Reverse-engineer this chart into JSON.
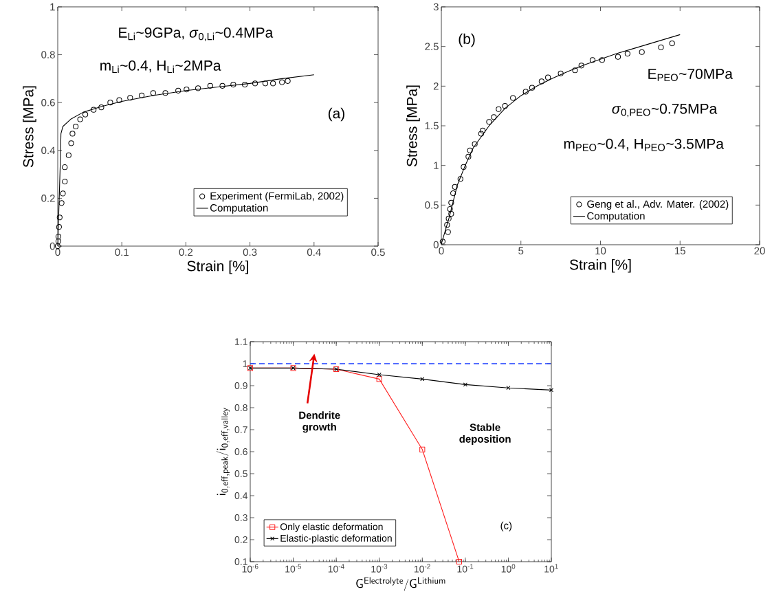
{
  "chart_data": [
    {
      "type": "scatter",
      "xlabel": "Strain [%]",
      "ylabel": "Stress [MPa]",
      "xlim": [
        0,
        0.5
      ],
      "ylim": [
        0,
        1
      ],
      "xticks": [
        0,
        0.1,
        0.2,
        0.3,
        0.4,
        0.5
      ],
      "yticks": [
        0,
        0.2,
        0.4,
        0.6,
        0.8,
        1
      ],
      "legend": "bottom right",
      "annotations": [
        "E$_{Li}$~9GPa, *σ*$_{0,Li}$~0.4MPa",
        "m$_{Li}$~0.4, H$_{Li}$~2MPa",
        "(a)"
      ],
      "series": [
        {
          "name": "Experiment (FermiLab, 2002)",
          "type": "scatter",
          "marker": "circle",
          "color": "#000000",
          "x": [
            0,
            0.001,
            0.001,
            0.002,
            0.003,
            0.006,
            0.008,
            0.011,
            0.011,
            0.017,
            0.021,
            0.023,
            0.028,
            0.035,
            0.043,
            0.056,
            0.068,
            0.082,
            0.096,
            0.113,
            0.131,
            0.149,
            0.168,
            0.188,
            0.201,
            0.219,
            0.238,
            0.257,
            0.274,
            0.292,
            0.308,
            0.324,
            0.336,
            0.35,
            0.359
          ],
          "values": [
            0,
            0.02,
            0.04,
            0.08,
            0.12,
            0.18,
            0.22,
            0.27,
            0.33,
            0.38,
            0.43,
            0.47,
            0.5,
            0.53,
            0.55,
            0.57,
            0.58,
            0.6,
            0.61,
            0.62,
            0.63,
            0.64,
            0.64,
            0.65,
            0.655,
            0.66,
            0.67,
            0.67,
            0.675,
            0.675,
            0.68,
            0.68,
            0.68,
            0.685,
            0.69
          ]
        },
        {
          "name": "Computation",
          "type": "line",
          "marker": "none",
          "color": "#000000",
          "x": [
            0,
            0.004,
            0.005,
            0.008,
            0.02,
            0.04,
            0.07,
            0.1,
            0.15,
            0.2,
            0.25,
            0.3,
            0.35,
            0.4
          ],
          "values": [
            0,
            0.35,
            0.47,
            0.5,
            0.53,
            0.56,
            0.585,
            0.605,
            0.63,
            0.65,
            0.665,
            0.68,
            0.7,
            0.716
          ]
        }
      ]
    },
    {
      "type": "scatter",
      "xlabel": "Strain [%]",
      "ylabel": "Stress [MPa]",
      "xlim": [
        0,
        20
      ],
      "ylim": [
        0,
        3
      ],
      "xticks": [
        0,
        5,
        10,
        15,
        20
      ],
      "yticks": [
        0,
        0.5,
        1,
        1.5,
        2,
        2.5,
        3
      ],
      "legend": "bottom right",
      "annotations": [
        "E$_{PEO}$~70MPa",
        "*σ*$_{0,PEO}$~0.75MPa",
        "m$_{PEO}$~0.4, H$_{PEO}$~3.5MPa",
        "(b)"
      ],
      "series": [
        {
          "name": "Geng et al., Adv. Mater. (2002)",
          "type": "scatter",
          "marker": "circle",
          "color": "#000000",
          "x": [
            0.08,
            0.42,
            0.36,
            0.46,
            0.62,
            0.54,
            0.62,
            0.74,
            0.85,
            1.2,
            1.4,
            1.7,
            1.8,
            2.1,
            2.5,
            2.6,
            3.0,
            3.3,
            3.6,
            4.0,
            4.5,
            5.3,
            5.7,
            6.3,
            6.7,
            7.5,
            8.4,
            8.8,
            9.5,
            10.1,
            11.1,
            11.7,
            12.6,
            13.8,
            14.5
          ],
          "values": [
            0.04,
            0.16,
            0.25,
            0.33,
            0.39,
            0.45,
            0.53,
            0.65,
            0.73,
            0.83,
            0.98,
            1.11,
            1.19,
            1.27,
            1.4,
            1.44,
            1.55,
            1.61,
            1.71,
            1.75,
            1.85,
            1.93,
            1.98,
            2.06,
            2.11,
            2.16,
            2.2,
            2.26,
            2.33,
            2.33,
            2.37,
            2.41,
            2.43,
            2.49,
            2.54
          ]
        },
        {
          "name": "Computation",
          "type": "line",
          "marker": "none",
          "color": "#000000",
          "x": [
            0,
            0.5,
            1,
            1.5,
            2,
            3,
            4,
            5,
            6,
            7,
            8,
            9,
            10,
            11,
            12,
            13,
            14,
            15
          ],
          "values": [
            0.01,
            0.35,
            0.75,
            1.0,
            1.22,
            1.5,
            1.72,
            1.88,
            2.0,
            2.1,
            2.19,
            2.27,
            2.34,
            2.41,
            2.47,
            2.53,
            2.59,
            2.65
          ]
        }
      ]
    },
    {
      "type": "line",
      "xlabel": "\\mathsf{G^{Electrolyte}/G^{Lithium}}",
      "ylabel": "\\mathsf{i_{0,eff,peak}/i_{0,eff,valley}}",
      "log": "x",
      "xlim": [
        1e-06,
        10
      ],
      "ylim": [
        0.1,
        1.1
      ],
      "xticks": [
        {
          "value": 1e-06,
          "label": "10$^{-6}$"
        },
        {
          "value": 1e-05,
          "label": "10$^{-5}$"
        },
        {
          "value": 0.0001,
          "label": "10$^{-4}$"
        },
        {
          "value": 0.001,
          "label": "10$^{-3}$"
        },
        {
          "value": 0.01,
          "label": "10$^{-2}$"
        },
        {
          "value": 0.1,
          "label": "10$^{-1}$"
        },
        {
          "value": 1,
          "label": "10$^{0}$"
        },
        {
          "value": 10,
          "label": "10$^{1}$"
        }
      ],
      "yticks": [
        0.1,
        0.2,
        0.3,
        0.4,
        0.5,
        0.6,
        0.7,
        0.8,
        0.9,
        1,
        1.1
      ],
      "legend": "bottom left",
      "annotations": [
        "Dendrite growth",
        "Stable deposition",
        "(c)"
      ],
      "ref_lines": [
        {
          "axis": "y",
          "value": 1,
          "color": "#1a3cff",
          "line_style": "dashed"
        }
      ],
      "series": [
        {
          "name": "Only elastic deformation",
          "marker": "square",
          "color": "#ff2020",
          "x": [
            1e-06,
            1e-05,
            0.0001,
            0.001,
            0.01,
            0.072
          ],
          "values": [
            0.98,
            0.98,
            0.975,
            0.93,
            0.61,
            0.1
          ]
        },
        {
          "name": "Elastic-plastic deformation",
          "marker": "cross",
          "color": "#000000",
          "x": [
            1e-06,
            1e-05,
            0.0001,
            0.001,
            0.01,
            0.1,
            1,
            10
          ],
          "values": [
            0.98,
            0.98,
            0.975,
            0.95,
            0.93,
            0.905,
            0.89,
            0.88
          ]
        }
      ]
    }
  ]
}
